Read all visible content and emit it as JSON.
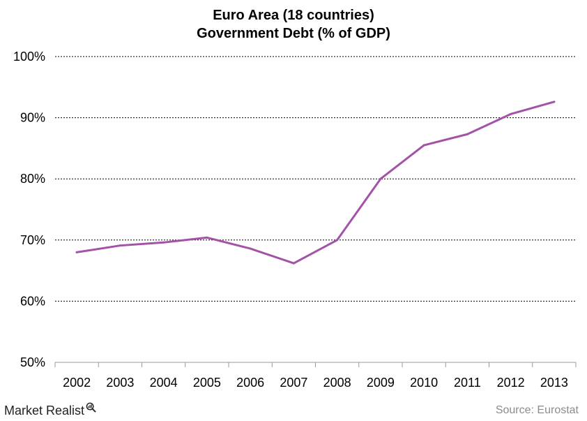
{
  "chart_data": {
    "type": "line",
    "title": "Euro Area (18 countries)",
    "subtitle": "Government Debt (% of GDP)",
    "xlabel": "",
    "ylabel": "",
    "categories": [
      "2002",
      "2003",
      "2004",
      "2005",
      "2006",
      "2007",
      "2008",
      "2009",
      "2010",
      "2011",
      "2012",
      "2013"
    ],
    "series": [
      {
        "values": [
          68.0,
          69.1,
          69.6,
          70.4,
          68.6,
          66.2,
          70.0,
          80.0,
          85.5,
          87.3,
          90.6,
          92.6
        ],
        "color": "#a352a8"
      }
    ],
    "ylim": [
      50,
      100
    ],
    "yticks": [
      50,
      60,
      70,
      80,
      90,
      100
    ],
    "ytick_labels": [
      "50%",
      "60%",
      "70%",
      "80%",
      "90%",
      "100%"
    ],
    "grid": true,
    "grid_style": "dashed",
    "legend": "none"
  },
  "footer": {
    "brand": "Market Realist",
    "source": "Source: Eurostat"
  },
  "icons": {
    "brand_logo": "magnifier-chart-icon"
  }
}
